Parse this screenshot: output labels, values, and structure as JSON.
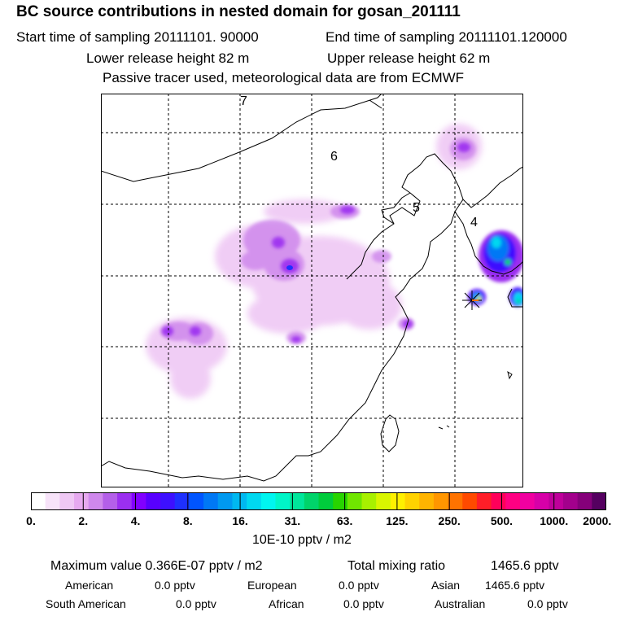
{
  "header": {
    "title": "BC  source contributions in nested domain for gosan_201111",
    "start": "Start time of sampling 20111101. 90000",
    "end": "End time of sampling 20111101.120000",
    "lower": "Lower release height   82 m",
    "upper": "Upper release height   62 m",
    "note": "Passive tracer used, meteorological data are from ECMWF"
  },
  "map": {
    "labels": [
      "7",
      "6",
      "5",
      "4"
    ]
  },
  "colorbar": {
    "ticks": [
      "0.",
      "2.",
      "4.",
      "8.",
      "16.",
      "31.",
      "63.",
      "125.",
      "250.",
      "500.",
      "1000.",
      "2000."
    ],
    "colors": [
      "#ffffff",
      "#f7e3f9",
      "#efc8f4",
      "#e6a9ef",
      "#cf88ec",
      "#b45fe9",
      "#9b2ff0",
      "#8100ff",
      "#5800ff",
      "#3d10ff",
      "#1e30ff",
      "#0055ff",
      "#0078f5",
      "#0099f0",
      "#00b8f0",
      "#00d8f0",
      "#00f5f0",
      "#00f5c8",
      "#00e69b",
      "#00d46a",
      "#00cc3c",
      "#28d400",
      "#70e600",
      "#a8f000",
      "#d9f500",
      "#fff000",
      "#ffd200",
      "#ffb400",
      "#ff9600",
      "#ff7300",
      "#ff4a00",
      "#ff1e28",
      "#ff005a",
      "#ff0082",
      "#f000a0",
      "#d700a8",
      "#bf009b",
      "#a3008c",
      "#85007a",
      "#550060"
    ],
    "units": "10E-10 pptv / m2"
  },
  "summary": {
    "max_label": "Maximum value  0.366E-07 pptv / m2",
    "total_label": "Total mixing ratio",
    "total_value": "1465.6 pptv",
    "rows": [
      [
        {
          "k": "American",
          "v": "0.0 pptv"
        },
        {
          "k": "European",
          "v": "0.0 pptv"
        },
        {
          "k": "Asian",
          "v": "1465.6 pptv"
        }
      ],
      [
        {
          "k": "South American",
          "v": "0.0 pptv"
        },
        {
          "k": "African",
          "v": "0.0 pptv"
        },
        {
          "k": "Australian",
          "v": "0.0 pptv"
        }
      ]
    ]
  }
}
